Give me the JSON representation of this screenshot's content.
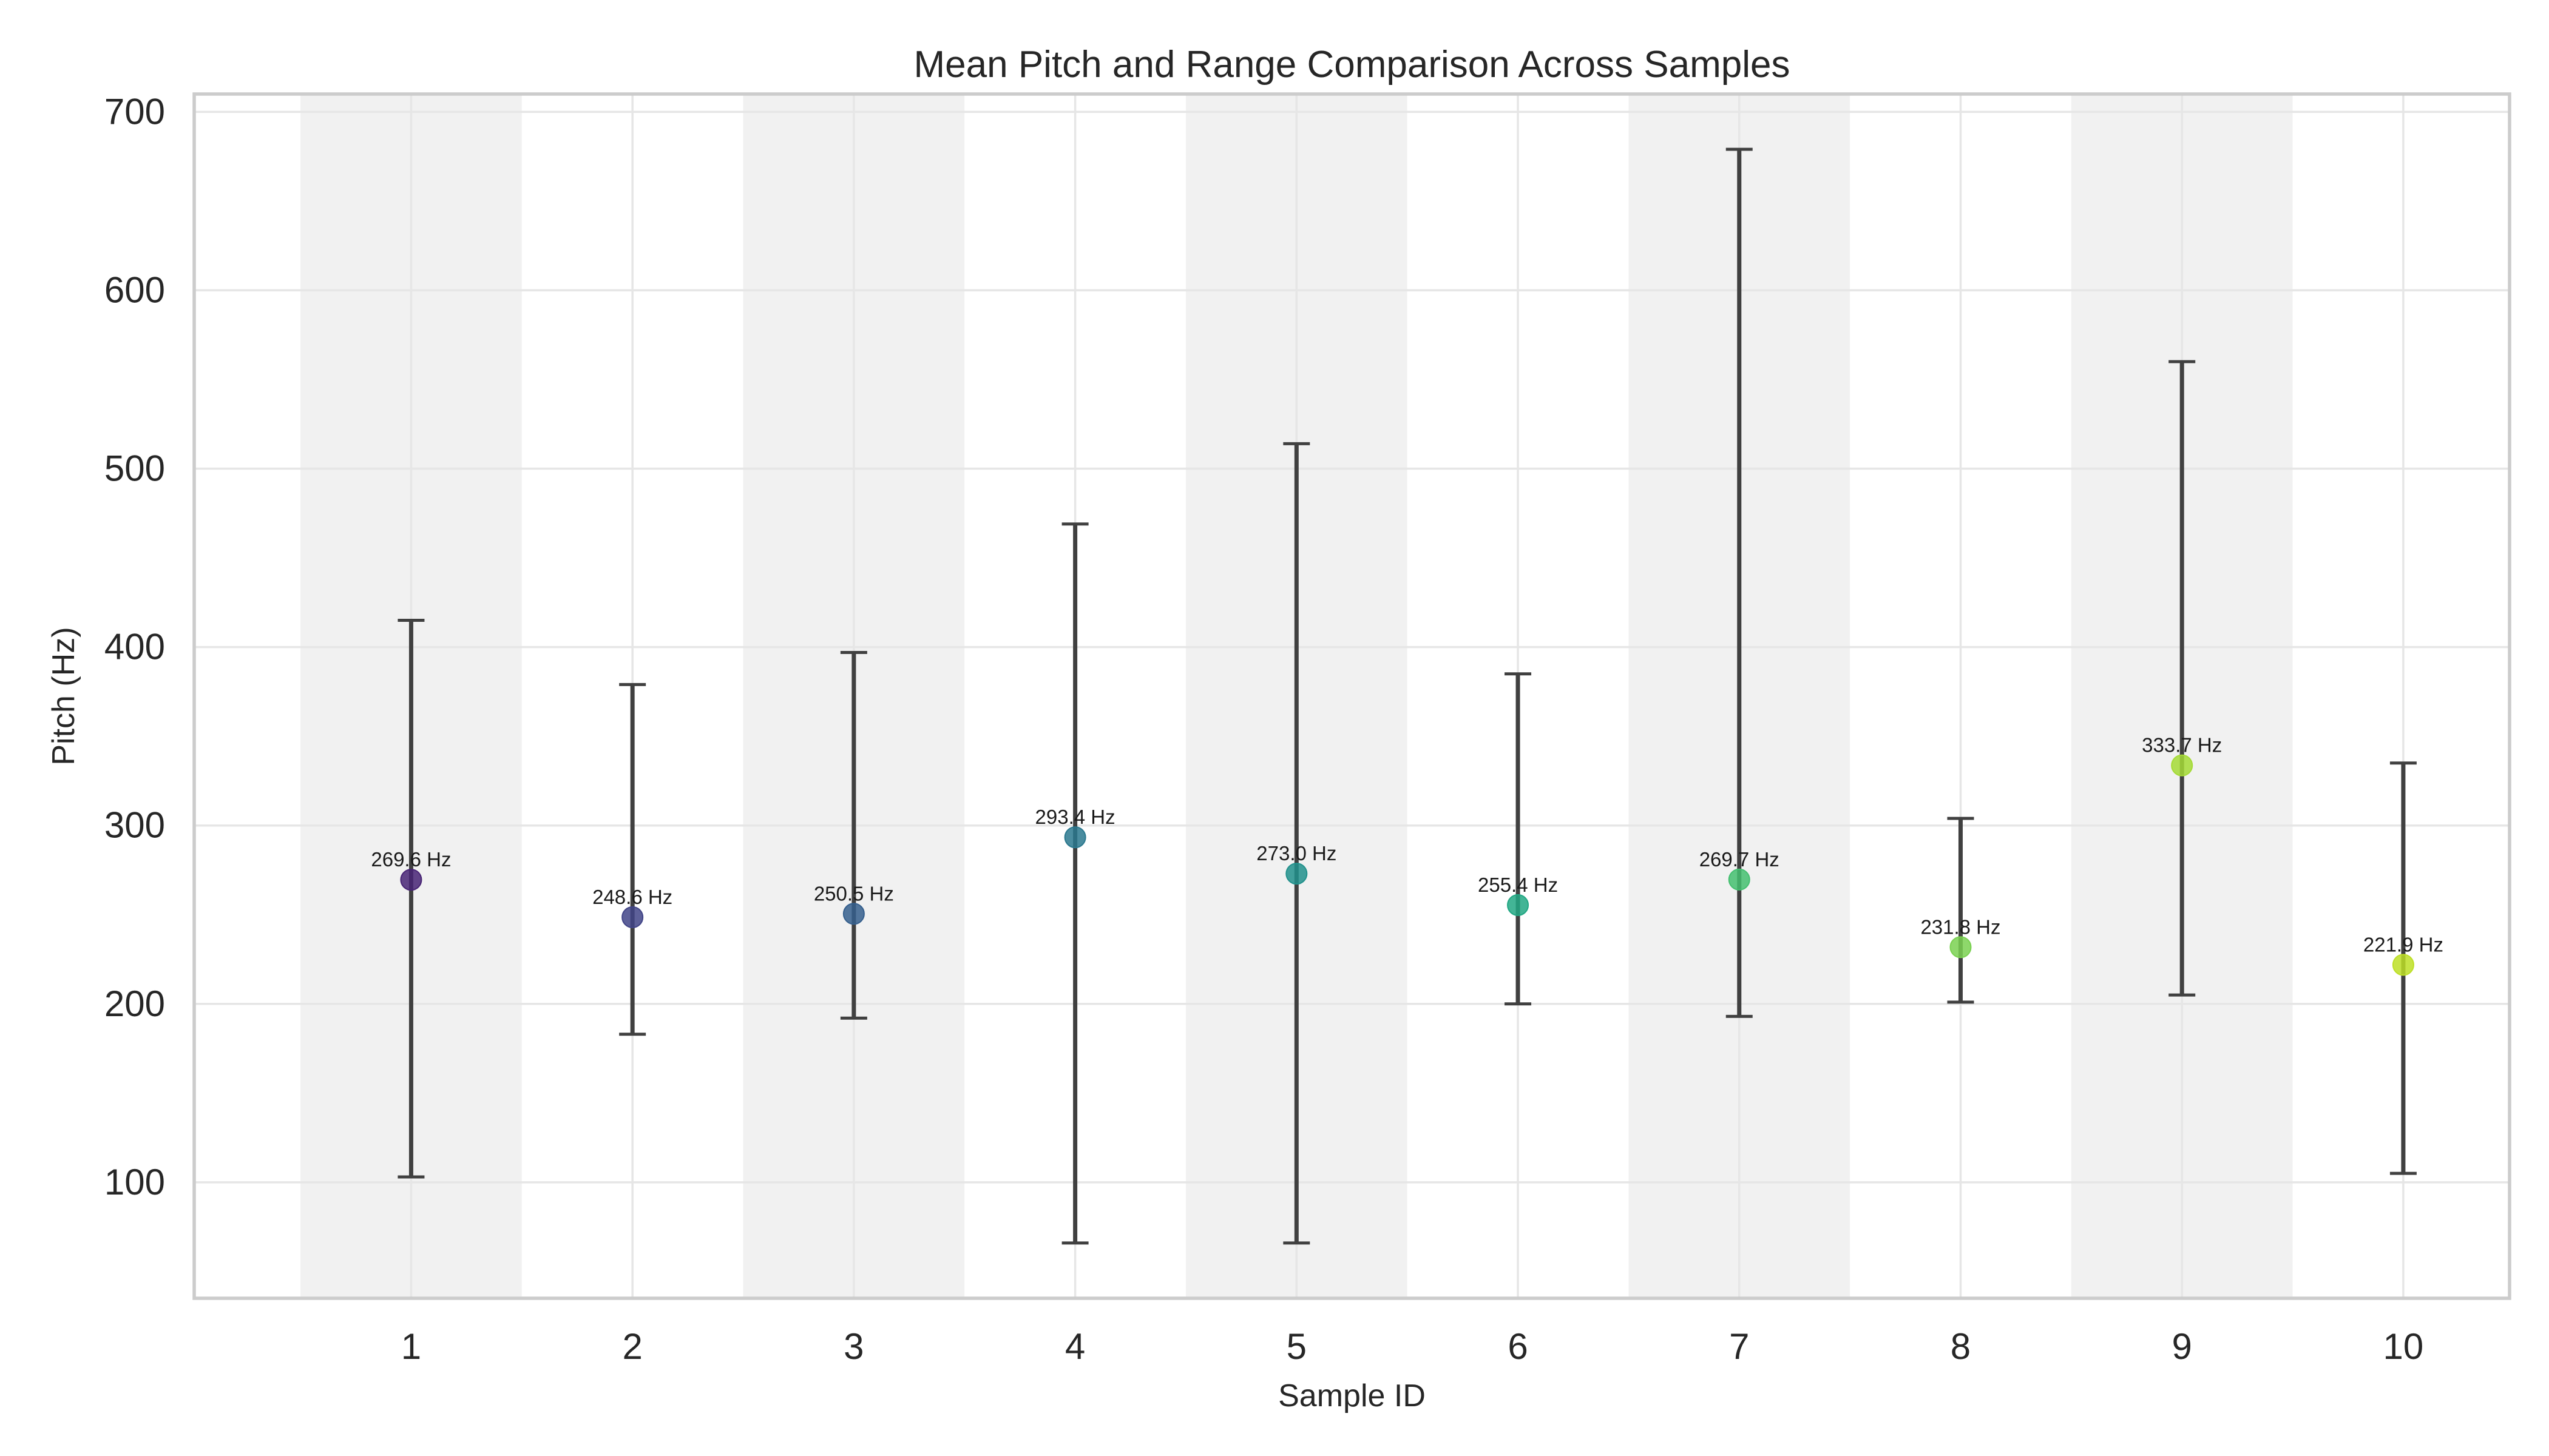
{
  "chart_data": {
    "type": "scatter",
    "title": "Mean Pitch and Range Comparison Across Samples",
    "xlabel": "Sample ID",
    "ylabel": "Pitch (Hz)",
    "ylim": [
      35,
      710
    ],
    "xlim": [
      0.02,
      10.48
    ],
    "yticks": [
      100,
      200,
      300,
      400,
      500,
      600,
      700
    ],
    "grid": true,
    "shaded_bands": [
      1,
      3,
      5,
      7,
      9
    ],
    "x": [
      "1",
      "2",
      "3",
      "4",
      "5",
      "6",
      "7",
      "8",
      "9",
      "10"
    ],
    "mean": [
      269.6,
      248.6,
      250.5,
      293.4,
      273.0,
      255.4,
      269.7,
      231.8,
      333.7,
      221.9
    ],
    "min": [
      103,
      183,
      192,
      66,
      66,
      200,
      193,
      201,
      205,
      105
    ],
    "max": [
      415,
      379,
      397,
      469,
      514,
      385,
      679,
      304,
      560,
      335
    ],
    "data_labels": [
      "269.6 Hz",
      "248.6 Hz",
      "250.5 Hz",
      "293.4 Hz",
      "273.0 Hz",
      "255.4 Hz",
      "269.7 Hz",
      "231.8 Hz",
      "333.7 Hz",
      "221.9 Hz"
    ],
    "point_colors": [
      "#482475",
      "#414487",
      "#355f8d",
      "#2a788e",
      "#21918c",
      "#22a884",
      "#44bf70",
      "#7ad151",
      "#a5db36",
      "#bddf26"
    ],
    "errorbar_color": "#404040"
  }
}
